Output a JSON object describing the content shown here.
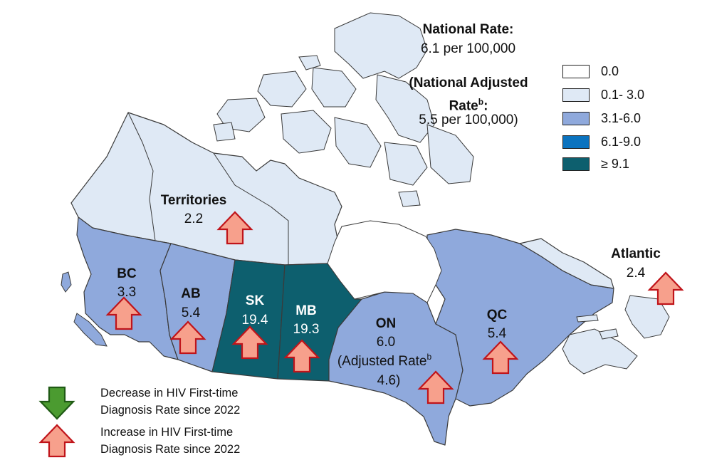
{
  "colors": {
    "bin_0": "#ffffff",
    "bin_1": "#dfe9f5",
    "bin_2": "#8fa9dc",
    "bin_3": "#0b73bf",
    "bin_4": "#0d5f6e",
    "increase_arrow": "#f7a08c",
    "increase_arrow_border": "#c0141a",
    "decrease_arrow": "#4b9b30",
    "decrease_arrow_border": "#1f5a14"
  },
  "national": {
    "title": "National Rate:",
    "value": "6.1 per 100,000",
    "adjusted_line1": "(National Adjusted",
    "adjusted_line2": "Rate",
    "adjusted_sup": "b",
    "adjusted_colon": ":",
    "adjusted_value": "5.5 per 100,000)"
  },
  "legend": [
    {
      "label": "0.0",
      "color": "#ffffff"
    },
    {
      "label": "0.1- 3.0",
      "color": "#dfe9f5"
    },
    {
      "label": "3.1-6.0",
      "color": "#8fa9dc"
    },
    {
      "label": "6.1-9.0",
      "color": "#0b73bf"
    },
    {
      "label": "≥ 9.1",
      "color": "#0d5f6e"
    }
  ],
  "regions": {
    "territories": {
      "name": "Territories",
      "rate": "2.2",
      "trend": "increase"
    },
    "bc": {
      "name": "BC",
      "rate": "3.3",
      "trend": "increase"
    },
    "ab": {
      "name": "AB",
      "rate": "5.4",
      "trend": "increase"
    },
    "sk": {
      "name": "SK",
      "rate": "19.4",
      "trend": "increase"
    },
    "mb": {
      "name": "MB",
      "rate": "19.3",
      "trend": "increase"
    },
    "on": {
      "name": "ON",
      "rate": "6.0",
      "adjusted_prefix": "(Adjusted Rate",
      "adjusted_sup": "b",
      "adjusted_value": "4.6)",
      "trend": "increase"
    },
    "qc": {
      "name": "QC",
      "rate": "5.4",
      "trend": "increase"
    },
    "atlantic": {
      "name": "Atlantic",
      "rate": "2.4",
      "trend": "increase"
    }
  },
  "key": {
    "decrease_line1": "Decrease in HIV First-time",
    "decrease_line2": "Diagnosis Rate since 2022",
    "increase_line1": "Increase in HIV First-time",
    "increase_line2": "Diagnosis Rate since 2022"
  }
}
